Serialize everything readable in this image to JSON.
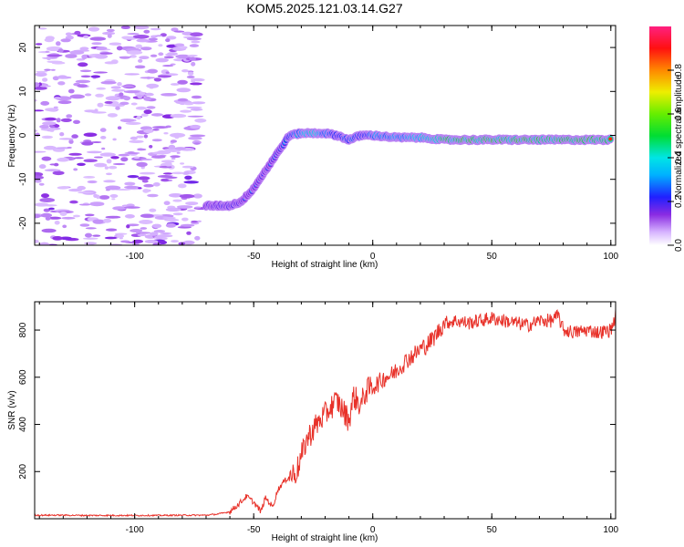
{
  "title": "KOM5.2025.121.03.14.G27",
  "chart_data": [
    {
      "type": "heatmap",
      "xlabel": "Height of straight line (km)",
      "ylabel": "Frequency (Hz)",
      "xlim": [
        -142,
        102
      ],
      "ylim": [
        -25,
        25
      ],
      "xticks": [
        -100,
        -50,
        0,
        50,
        100
      ],
      "yticks": [
        -20,
        -10,
        0,
        10,
        20
      ],
      "colorbar": {
        "label": "Normalized spectral amplitude",
        "range": [
          0,
          1
        ],
        "ticks": [
          0.0,
          0.2,
          0.4,
          0.6,
          0.8
        ]
      },
      "ridge": {
        "x": [
          -70,
          -60,
          -55,
          -50,
          -45,
          -40,
          -35,
          -30,
          -25,
          -20,
          -15,
          -10,
          -5,
          0,
          10,
          20,
          30,
          50,
          70,
          100
        ],
        "freq": [
          -16,
          -16,
          -15,
          -12,
          -8,
          -4,
          0,
          0.5,
          0.5,
          0.5,
          0,
          -1,
          0,
          0,
          -0.5,
          -0.5,
          -1,
          -1,
          -1,
          -1
        ],
        "amplitude": [
          0.3,
          0.35,
          0.3,
          0.3,
          0.25,
          0.3,
          0.45,
          0.6,
          0.8,
          0.55,
          0.4,
          0.5,
          0.45,
          0.55,
          0.6,
          0.7,
          0.9,
          0.95,
          0.95,
          0.9
        ]
      },
      "noise_region_x": [
        -142,
        -72
      ]
    },
    {
      "type": "line",
      "xlabel": "Height of straight line (km)",
      "ylabel": "SNR (v/v)",
      "xlim": [
        -142,
        102
      ],
      "ylim": [
        0,
        920
      ],
      "xticks": [
        -100,
        -50,
        0,
        50,
        100
      ],
      "yticks": [
        200,
        400,
        600,
        800
      ],
      "series": [
        {
          "color": "#e8322a",
          "x": [
            -142,
            -130,
            -120,
            -110,
            -100,
            -90,
            -80,
            -70,
            -65,
            -60,
            -56,
            -53,
            -50,
            -47,
            -45,
            -42,
            -40,
            -38,
            -35,
            -32,
            -30,
            -28,
            -25,
            -22,
            -20,
            -18,
            -15,
            -12,
            -10,
            -8,
            -5,
            -3,
            0,
            3,
            5,
            8,
            10,
            13,
            15,
            18,
            20,
            23,
            25,
            28,
            30,
            35,
            40,
            45,
            50,
            55,
            60,
            65,
            70,
            75,
            78,
            80,
            85,
            90,
            95,
            100,
            102
          ],
          "y": [
            15,
            15,
            14,
            14,
            14,
            14,
            15,
            15,
            20,
            30,
            65,
            95,
            70,
            30,
            90,
            50,
            120,
            150,
            180,
            200,
            260,
            330,
            380,
            420,
            440,
            470,
            500,
            450,
            420,
            520,
            480,
            540,
            560,
            580,
            600,
            610,
            630,
            660,
            680,
            700,
            720,
            740,
            760,
            800,
            830,
            840,
            830,
            840,
            850,
            840,
            830,
            820,
            840,
            840,
            860,
            800,
            790,
            800,
            790,
            800,
            860
          ]
        }
      ]
    }
  ]
}
